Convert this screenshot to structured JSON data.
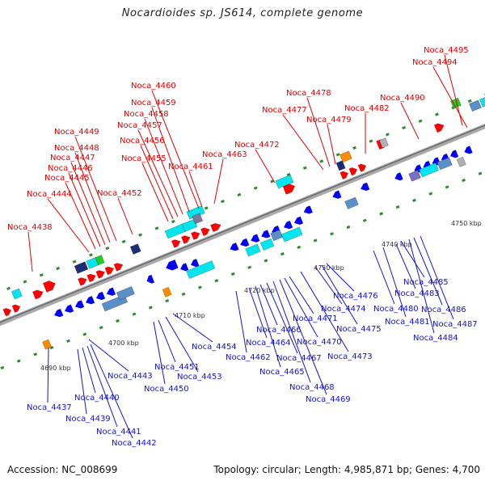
{
  "header": {
    "title": "Nocardioides sp. JS614, complete genome"
  },
  "footer": {
    "accession": "Accession: NC_008699",
    "summary": "Topology: circular; Length: 4,985,871 bp; Genes: 4,700"
  },
  "scale_labels": [
    "4690 kbp",
    "4700 kbp",
    "4710 kbp",
    "4720 kbp",
    "4730 kbp",
    "4740 kbp",
    "4750 kbp"
  ],
  "colors": {
    "forward_label": "#e00000",
    "reverse_label": "#1414c8",
    "backbone": "#808080",
    "forward_gene": "#ff0000",
    "reverse_gene": "#0000ff",
    "cyan_feature": "#00e5ee",
    "navy_feature": "#1e2c78",
    "steel_feature": "#5a8fc8",
    "orange_feature": "#ff8c00",
    "green_feature": "#22cc22",
    "tick": "#2e8b2e"
  },
  "forward_genes": [
    "Noca_4438",
    "Noca_4444",
    "Noca_4445",
    "Noca_4446",
    "Noca_4447",
    "Noca_4448",
    "Noca_4449",
    "Noca_4452",
    "Noca_4455",
    "Noca_4456",
    "Noca_4457",
    "Noca_4458",
    "Noca_4459",
    "Noca_4460",
    "Noca_4461",
    "Noca_4463",
    "Noca_4472",
    "Noca_4477",
    "Noca_4478",
    "Noca_4479",
    "Noca_4482",
    "Noca_4490",
    "Noca_4494",
    "Noca_4495"
  ],
  "reverse_genes": [
    "Noca_4437",
    "Noca_4439",
    "Noca_4440",
    "Noca_4441",
    "Noca_4442",
    "Noca_4443",
    "Noca_4450",
    "Noca_4451",
    "Noca_4453",
    "Noca_4454",
    "Noca_4462",
    "Noca_4464",
    "Noca_4465",
    "Noca_4466",
    "Noca_4467",
    "Noca_4468",
    "Noca_4469",
    "Noca_4470",
    "Noca_4471",
    "Noca_4473",
    "Noca_4474",
    "Noca_4475",
    "Noca_4476",
    "Noca_4480",
    "Noca_4481",
    "Noca_4483",
    "Noca_4484",
    "Noca_4485",
    "Noca_4486",
    "Noca_4487"
  ]
}
